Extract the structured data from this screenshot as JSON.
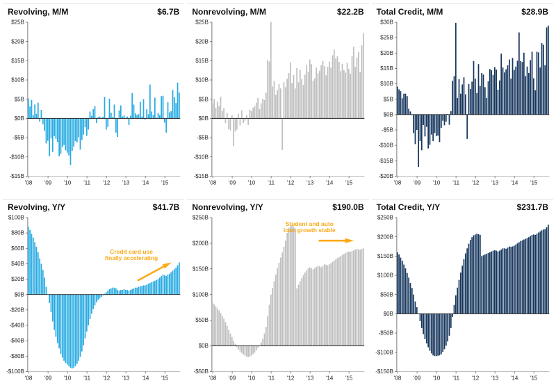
{
  "page": {
    "background": "#FFFFFF"
  },
  "chart_data": [
    {
      "type": "bar",
      "title": "Revolving, M/M",
      "latest_label": "$6.7B",
      "color": "#29ABE2",
      "ylabel": "",
      "xlabel": "",
      "ylim": [
        -15,
        25
      ],
      "ytick_step": 5,
      "ytick_format": "$B",
      "grid": false,
      "x_unit": "month",
      "x_labels": [
        "'08",
        "'09",
        "'10",
        "'11",
        "'12",
        "'13",
        "'14",
        "'15"
      ],
      "x_tick_every": 12,
      "values": [
        5.2,
        3.1,
        4.8,
        0.9,
        3.6,
        1.2,
        4.1,
        -0.8,
        2.2,
        -1.5,
        -3.2,
        -6.5,
        -5.8,
        -9.8,
        -5.2,
        -8.7,
        -4.6,
        -5.3,
        -6.1,
        -9.8,
        -9.2,
        -7.4,
        -6.9,
        -8.3,
        -8.9,
        -9.6,
        -12.1,
        -8.4,
        -7.3,
        -5.9,
        -6.2,
        -4.9,
        -8.1,
        -5.6,
        -4.2,
        -2.3,
        -4.5,
        -2.9,
        1.8,
        0.7,
        2.4,
        3.2,
        -1.2,
        0.3,
        0.5,
        0.2,
        0.4,
        5.6,
        -2.9,
        -2.2,
        5.1,
        1.5,
        0.4,
        3.6,
        -3.7,
        -4.8,
        2.1,
        3.4,
        0.5,
        0.8,
        0.1,
        0.5,
        -1.7,
        0.7,
        6.6,
        3.6,
        1.3,
        0.9,
        1.1,
        4.3,
        0.5,
        5.0,
        -0.3,
        2.4,
        1.1,
        8.8,
        1.8,
        0.9,
        5.4,
        0.2,
        1.4,
        0.9,
        5.8,
        5.9,
        -1.1,
        -3.7,
        4.2,
        1.6,
        1.9,
        7.4,
        5.5,
        4.0,
        9.3,
        6.7
      ]
    },
    {
      "type": "bar",
      "title": "Nonrevolving, M/M",
      "latest_label": "$22.2B",
      "color": "#BFBFBF",
      "ylabel": "",
      "xlabel": "",
      "ylim": [
        -15,
        25
      ],
      "ytick_step": 5,
      "ytick_format": "$B",
      "grid": false,
      "x_unit": "month",
      "x_labels": [
        "'08",
        "'09",
        "'10",
        "'11",
        "'12",
        "'13",
        "'14",
        "'15"
      ],
      "x_tick_every": 12,
      "values": [
        3.9,
        5.1,
        2.8,
        4.4,
        3.2,
        5.6,
        1.9,
        2.7,
        -1.2,
        1.4,
        -2.8,
        -3.1,
        0.8,
        -7.2,
        -3.4,
        -2.9,
        1.2,
        -1.8,
        2.1,
        -1.2,
        -0.6,
        0.9,
        -1.7,
        2.3,
        1.9,
        2.8,
        3.2,
        4.1,
        5.3,
        2.4,
        3.9,
        5.1,
        4.8,
        6.7,
        15.2,
        14.8,
        25.1,
        8.3,
        9.7,
        6.1,
        7.4,
        8.9,
        7.8,
        -8.2,
        9.4,
        8.1,
        10.3,
        11.8,
        14.6,
        9.2,
        11.3,
        7.8,
        13.1,
        9.4,
        12.6,
        10.2,
        8.7,
        11.4,
        13.9,
        12.1,
        15.3,
        14.1,
        9.8,
        10.4,
        13.2,
        11.7,
        12.4,
        13.8,
        14.9,
        13.6,
        11.2,
        13.4,
        14.8,
        13.2,
        16.4,
        17.9,
        15.6,
        16.2,
        14.7,
        12.3,
        14.2,
        12.6,
        11.9,
        14.5,
        12.9,
        11.6,
        16.2,
        18.6,
        13.4,
        15.8,
        17.2,
        12.0,
        19.0,
        22.2
      ]
    },
    {
      "type": "bar",
      "title": "Total Credit, M/M",
      "latest_label": "$28.9B",
      "color": "#17375E",
      "ylabel": "",
      "xlabel": "",
      "ylim": [
        -20,
        30
      ],
      "ytick_step": 5,
      "ytick_format": "$B",
      "grid": false,
      "x_unit": "month",
      "x_labels": [
        "'08",
        "'09",
        "'10",
        "'11",
        "'12",
        "'13",
        "'14",
        "'15"
      ],
      "x_tick_every": 12,
      "values": [
        9.1,
        8.2,
        7.6,
        5.3,
        6.8,
        6.8,
        6.0,
        1.9,
        1.0,
        -0.1,
        -6.0,
        -9.6,
        -5.0,
        -17.0,
        -8.6,
        -11.6,
        -3.4,
        -7.1,
        -4.0,
        -11.0,
        -9.8,
        -6.5,
        -8.6,
        -6.0,
        -7.0,
        -6.8,
        -8.9,
        -4.3,
        -2.0,
        -3.5,
        -2.3,
        0.2,
        -3.3,
        1.1,
        11.0,
        12.5,
        29.8,
        5.4,
        11.5,
        6.8,
        9.8,
        12.1,
        6.6,
        -7.9,
        9.9,
        8.3,
        10.7,
        17.4,
        11.7,
        7.0,
        16.4,
        9.3,
        13.5,
        13.0,
        8.9,
        5.4,
        10.8,
        14.8,
        14.4,
        12.9,
        15.4,
        14.6,
        8.1,
        11.1,
        19.8,
        15.3,
        13.7,
        14.7,
        16.0,
        17.9,
        11.7,
        18.4,
        14.5,
        15.6,
        17.5,
        26.7,
        17.4,
        17.1,
        20.1,
        12.5,
        15.6,
        13.5,
        17.7,
        20.4,
        11.8,
        7.9,
        20.4,
        20.2,
        15.3,
        23.2,
        22.7,
        16.0,
        28.3,
        28.9
      ]
    },
    {
      "type": "bar",
      "title": "Revolving, Y/Y",
      "latest_label": "$41.7B",
      "color": "#29ABE2",
      "ylabel": "",
      "xlabel": "",
      "ylim": [
        -100,
        100
      ],
      "ytick_step": 20,
      "ytick_format": "$B",
      "grid": false,
      "x_unit": "month",
      "x_labels": [
        "'08",
        "'09",
        "'10",
        "'11",
        "'12",
        "'13",
        "'14",
        "'15"
      ],
      "x_tick_every": 12,
      "annotation": {
        "lines": [
          "Credit card use",
          "finally accelerating"
        ],
        "color": "#FBAA19",
        "tx": 0.68,
        "ty": 0.235,
        "arrow": {
          "x1": 0.72,
          "y1": 0.41,
          "x2": 0.915,
          "y2": 0.305
        }
      },
      "values": [
        88,
        84,
        79,
        74,
        68,
        62,
        55,
        47,
        40,
        32,
        22,
        10,
        0,
        -11,
        -23,
        -35,
        -46,
        -55,
        -63,
        -70,
        -77,
        -82,
        -86,
        -89,
        -91,
        -93,
        -95,
        -96,
        -95,
        -93,
        -90,
        -86,
        -81,
        -74,
        -66,
        -57,
        -48,
        -40,
        -32,
        -25,
        -19,
        -14,
        -10,
        -7,
        -5,
        -3,
        -1,
        1,
        3,
        5,
        7,
        8,
        9,
        9,
        8,
        6,
        5,
        6,
        6,
        7,
        6,
        6,
        5,
        6,
        7,
        8,
        9,
        9,
        10,
        11,
        11,
        12,
        12,
        13,
        14,
        15,
        16,
        17,
        18,
        19,
        20,
        22,
        24,
        26,
        25,
        24,
        26,
        27,
        29,
        31,
        33,
        35,
        38,
        41.7
      ]
    },
    {
      "type": "bar",
      "title": "Nonrevolving, Y/Y",
      "latest_label": "$190.0B",
      "color": "#BFBFBF",
      "ylabel": "",
      "xlabel": "",
      "ylim": [
        -50,
        250
      ],
      "ytick_step": 50,
      "ytick_format": "$B",
      "grid": false,
      "x_unit": "month",
      "x_labels": [
        "'08",
        "'09",
        "'10",
        "'11",
        "'12",
        "'13",
        "'14",
        "'15"
      ],
      "x_tick_every": 12,
      "annotation": {
        "lines": [
          "Student and auto",
          "loan growth stable"
        ],
        "color": "#FBAA19",
        "tx": 0.64,
        "ty": 0.055,
        "arrow": {
          "x1": 0.7,
          "y1": 0.15,
          "x2": 0.9,
          "y2": 0.15
        }
      },
      "values": [
        84,
        81,
        77,
        73,
        69,
        64,
        59,
        53,
        46,
        39,
        31,
        24,
        17,
        10,
        4,
        -2,
        -7,
        -11,
        -14,
        -17,
        -19,
        -21,
        -22,
        -21,
        -19,
        -16,
        -13,
        -9,
        -4,
        1,
        7,
        14,
        24,
        37,
        58,
        80,
        100,
        113,
        126,
        139,
        151,
        162,
        172,
        182,
        193,
        205,
        220,
        230,
        233,
        235,
        232,
        229,
        112,
        119,
        126,
        132,
        138,
        143,
        147,
        151,
        153,
        151,
        149,
        151,
        154,
        156,
        155,
        153,
        156,
        159,
        158,
        157,
        159,
        161,
        164,
        166,
        169,
        171,
        173,
        175,
        177,
        179,
        181,
        183,
        184,
        183,
        185,
        186,
        188,
        189,
        188,
        187,
        189,
        190
      ]
    },
    {
      "type": "bar",
      "title": "Total Credit, Y/Y",
      "latest_label": "$231.7B",
      "color": "#17375E",
      "ylabel": "",
      "xlabel": "",
      "ylim": [
        -150,
        250
      ],
      "ytick_step": 50,
      "ytick_format": "$B",
      "grid": false,
      "x_unit": "month",
      "x_labels": [
        "'08",
        "'09",
        "'10",
        "'11",
        "'12",
        "'13",
        "'14",
        "'15"
      ],
      "x_tick_every": 12,
      "values": [
        160,
        154,
        146,
        138,
        128,
        118,
        106,
        94,
        80,
        67,
        50,
        32,
        17,
        -1,
        -19,
        -37,
        -53,
        -66,
        -77,
        -87,
        -96,
        -103,
        -108,
        -110,
        -110,
        -109,
        -108,
        -105,
        -99,
        -92,
        -83,
        -72,
        -57,
        -37,
        -8,
        23,
        48,
        68,
        88,
        107,
        125,
        142,
        157,
        170,
        182,
        192,
        199,
        204,
        206,
        208,
        207,
        205,
        150,
        152,
        154,
        156,
        158,
        160,
        162,
        164,
        165,
        164,
        162,
        164,
        167,
        170,
        170,
        169,
        172,
        175,
        174,
        175,
        177,
        180,
        183,
        186,
        189,
        191,
        193,
        195,
        197,
        199,
        202,
        205,
        206,
        205,
        208,
        211,
        214,
        217,
        219,
        220,
        225,
        231.7
      ]
    }
  ]
}
